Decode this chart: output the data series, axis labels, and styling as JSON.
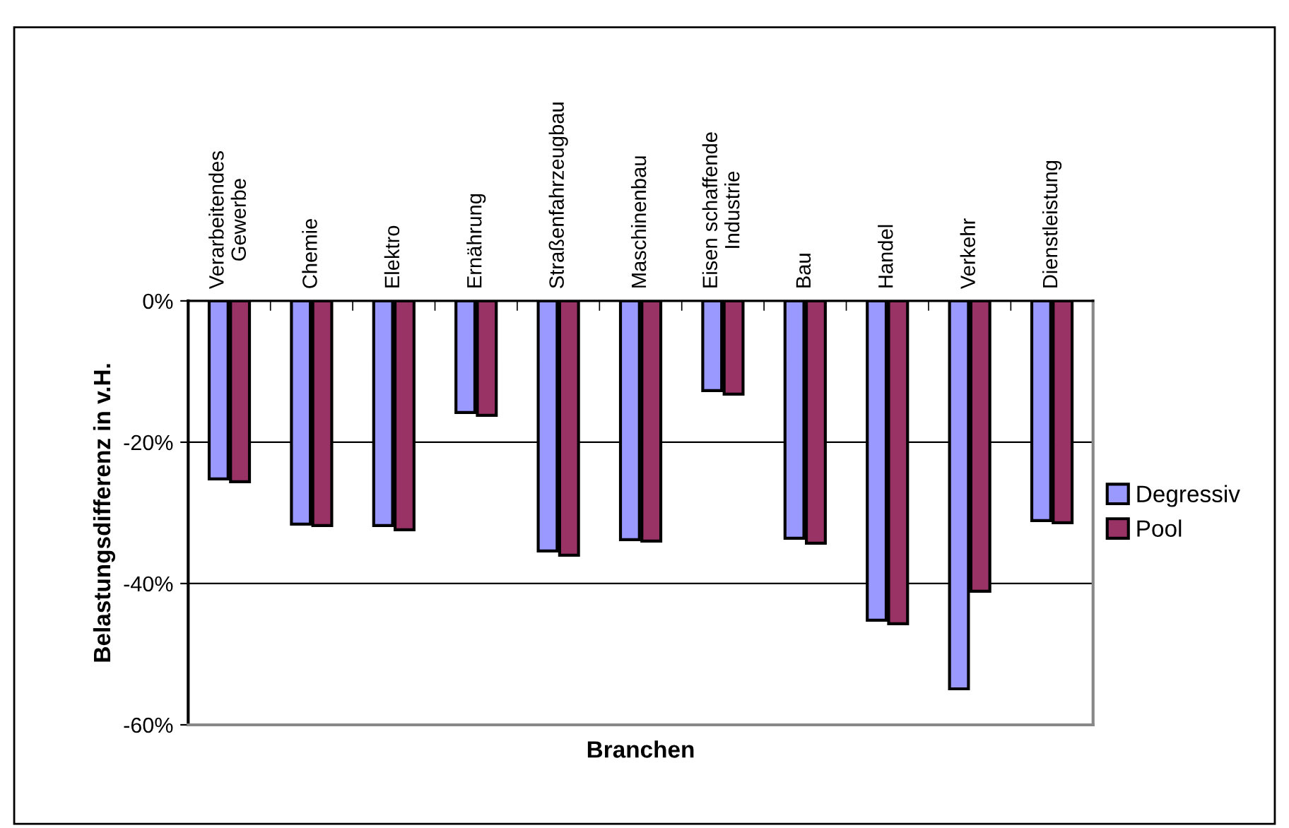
{
  "chart_data": {
    "type": "bar",
    "xlabel": "Branchen",
    "ylabel": "Belastungsdifferenz in v.H.",
    "categories": [
      "Verarbeitendes\nGewerbe",
      "Chemie",
      "Elektro",
      "Ernährung",
      "Straßenfahrzeugbau",
      "Maschinenbau",
      "Eisen schaffende\nIndustrie",
      "Bau",
      "Handel",
      "Verkehr",
      "Dienstleistung"
    ],
    "series": [
      {
        "name": "Degressiv",
        "color": "#9999ff",
        "values": [
          -25.2,
          -31.6,
          -31.8,
          -15.8,
          -35.4,
          -33.8,
          -12.7,
          -33.6,
          -45.2,
          -54.9,
          -31.1
        ]
      },
      {
        "name": "Pool",
        "color": "#993366",
        "values": [
          -25.6,
          -31.8,
          -32.4,
          -16.2,
          -36.0,
          -34.0,
          -13.2,
          -34.3,
          -45.7,
          -41.1,
          -31.4
        ]
      }
    ],
    "ylim": [
      -60,
      0
    ],
    "yticks": [
      {
        "value": -60,
        "label": "-60%"
      },
      {
        "value": -40,
        "label": "-40%"
      },
      {
        "value": -20,
        "label": "-20%"
      },
      {
        "value": 0,
        "label": "0%"
      }
    ],
    "grid": "y",
    "legend": "right"
  }
}
